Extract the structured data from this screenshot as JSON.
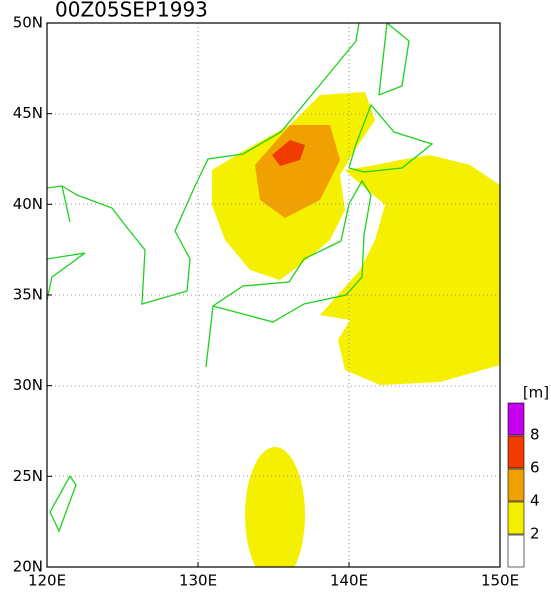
{
  "title": "00Z05SEP1993",
  "latitude_labels": [
    "50N",
    "45N",
    "40N",
    "35N",
    "30N",
    "25N",
    "20N"
  ],
  "longitude_labels": [
    "120E",
    "130E",
    "140E",
    "150E"
  ],
  "legend": {
    "unit": "[m]",
    "levels": [
      2,
      4,
      6,
      8
    ],
    "colors": [
      "#ffffff",
      "#f5f000",
      "#f0a000",
      "#f03c00",
      "#c800f0"
    ]
  }
}
